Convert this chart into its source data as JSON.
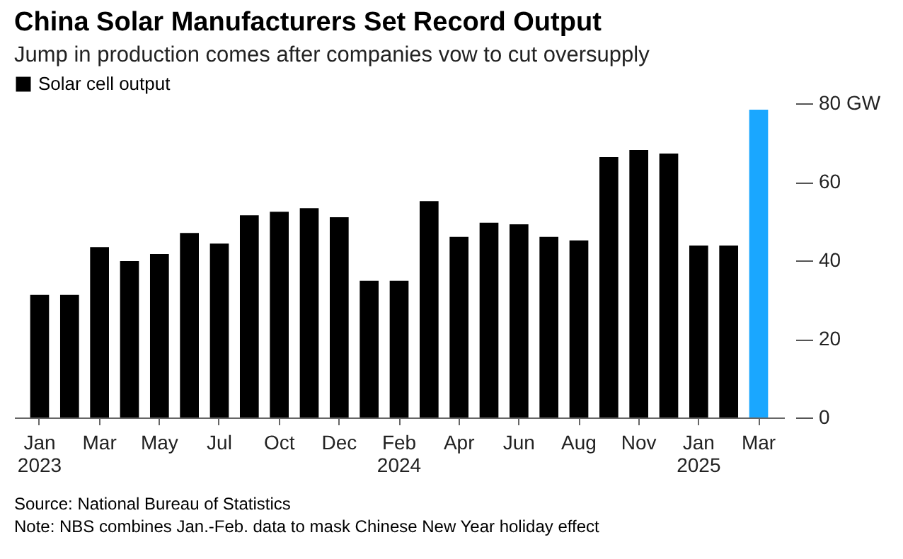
{
  "chart_data": {
    "type": "bar",
    "title": "China Solar Manufacturers Set Record Output",
    "subtitle": "Jump in production comes after companies vow to cut oversupply",
    "categories": [
      "Jan 2023",
      null,
      "Mar",
      null,
      "May",
      null,
      "Jul",
      null,
      "Oct",
      null,
      "Dec",
      null,
      "Feb 2024",
      null,
      "Apr",
      null,
      "Jun",
      null,
      "Aug",
      null,
      "Nov",
      null,
      "Jan 2025",
      null,
      "Mar"
    ],
    "series": [
      {
        "name": "Solar cell output",
        "color": "#000000",
        "colors": [
          "#000000",
          "#000000",
          "#000000",
          "#000000",
          "#000000",
          "#000000",
          "#000000",
          "#000000",
          "#000000",
          "#000000",
          "#000000",
          "#000000",
          "#000000",
          "#000000",
          "#000000",
          "#000000",
          "#000000",
          "#000000",
          "#000000",
          "#000000",
          "#000000",
          "#000000",
          "#000000",
          "#000000",
          "#1aa7ff"
        ],
        "values": [
          31.2,
          31.2,
          43.4,
          39.8,
          41.6,
          47.0,
          44.3,
          51.5,
          52.4,
          53.3,
          51.0,
          34.8,
          34.8,
          55.1,
          46.0,
          49.6,
          49.2,
          46.0,
          45.1,
          66.3,
          68.1,
          67.2,
          43.8,
          43.8,
          78.4
        ]
      }
    ],
    "ylim": [
      0,
      80
    ],
    "yticks": [
      0,
      20,
      40,
      60,
      {
        "value": 80,
        "label": "80 GW"
      }
    ],
    "grid": false,
    "legend": "top left",
    "annotations": [
      "Source: National Bureau of Statistics",
      "Note: NBS combines Jan.-Feb. data to mask Chinese New Year holiday effect"
    ]
  }
}
